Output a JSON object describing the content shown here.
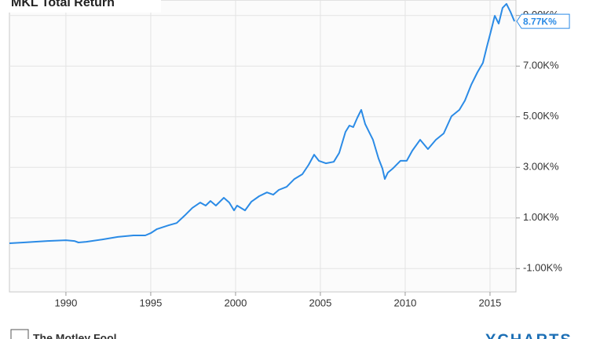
{
  "chart_data": {
    "type": "line",
    "title": "MKL Total Return",
    "x": [
      1986.67,
      1987.5,
      1988.9,
      1990,
      1990.5,
      1990.74,
      1991.2,
      1992.13,
      1993.06,
      1993.98,
      1994.68,
      1995,
      1995.37,
      1996.06,
      1996.53,
      1996.99,
      1997.45,
      1997.92,
      1998.24,
      1998.52,
      1998.84,
      1999.31,
      1999.63,
      1999.91,
      2000.09,
      2000.56,
      2000.93,
      2001.39,
      2001.85,
      2002.22,
      2002.55,
      2003.01,
      2003.47,
      2003.94,
      2004.31,
      2004.63,
      2004.91,
      2005.32,
      2005.79,
      2006.11,
      2006.48,
      2006.71,
      2006.94,
      2007.18,
      2007.41,
      2007.64,
      2007.87,
      2008.1,
      2008.43,
      2008.66,
      2008.8,
      2008.98,
      2009.26,
      2009.72,
      2010.09,
      2010.42,
      2010.88,
      2011.34,
      2011.81,
      2012.27,
      2012.73,
      2013.19,
      2013.52,
      2013.89,
      2014.26,
      2014.58,
      2014.81,
      2015.05,
      2015.28,
      2015.51,
      2015.74,
      2015.97,
      2016.2,
      2016.44
    ],
    "values": [
      0,
      30,
      90,
      120,
      90,
      30,
      60,
      150,
      250,
      310,
      310,
      400,
      560,
      710,
      800,
      1090,
      1400,
      1610,
      1490,
      1670,
      1490,
      1800,
      1610,
      1300,
      1490,
      1300,
      1640,
      1860,
      2010,
      1920,
      2110,
      2230,
      2540,
      2730,
      3100,
      3500,
      3260,
      3160,
      3220,
      3570,
      4400,
      4650,
      4590,
      4960,
      5270,
      4710,
      4400,
      4090,
      3350,
      2950,
      2540,
      2790,
      2950,
      3260,
      3260,
      3660,
      4090,
      3720,
      4090,
      4340,
      5020,
      5270,
      5640,
      6260,
      6760,
      7130,
      7750,
      8370,
      8990,
      8680,
      9300,
      9460,
      9150,
      8770
    ],
    "value_labels": [
      null,
      null,
      null,
      null,
      null,
      null,
      null,
      null,
      null,
      null,
      null,
      null,
      null,
      null,
      null,
      null,
      null,
      null,
      null,
      null,
      null,
      null,
      null,
      null,
      null,
      null,
      null,
      null,
      null,
      null,
      null,
      null,
      null,
      null,
      null,
      null,
      null,
      null,
      null,
      null,
      null,
      null,
      null,
      null,
      null,
      null,
      null,
      null,
      null,
      null,
      null,
      null,
      null,
      null,
      null,
      null,
      null,
      null,
      null,
      null,
      null,
      null,
      null,
      null,
      null,
      null,
      null,
      null,
      null,
      null,
      null,
      null,
      null,
      "8.77K%"
    ],
    "color": "#2b8be6",
    "xlim": [
      1986.67,
      2016.53
    ],
    "xticks": [
      1990,
      1995,
      2000,
      2005,
      2010,
      2015
    ],
    "ylim": [
      -1922,
      9612
    ],
    "yticks": [
      {
        "value": -1000,
        "label": "-1.00K%"
      },
      {
        "value": 1000,
        "label": "1.00K%"
      },
      {
        "value": 3000,
        "label": "3.00K%"
      },
      {
        "value": 5000,
        "label": "5.00K%"
      },
      {
        "value": 7000,
        "label": "7.00K%"
      },
      {
        "value": 9000,
        "label": "9.00K%"
      }
    ],
    "grid": true
  },
  "footer": {
    "source": "The Motley Fool",
    "brand": "YCHARTS"
  }
}
